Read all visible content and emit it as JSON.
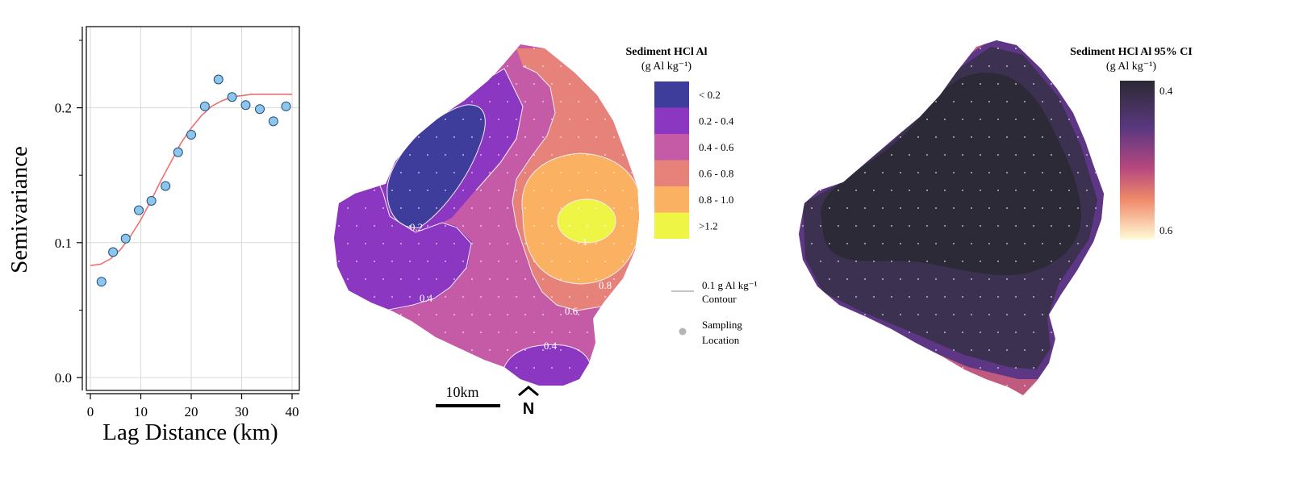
{
  "chart_data": [
    {
      "type": "scatter",
      "xlabel": "Lag Distance (km)",
      "ylabel": "Semivariance",
      "xlim": [
        0,
        40
      ],
      "ylim": [
        0.0,
        0.25
      ],
      "x_ticks": [
        "0",
        "10",
        "20",
        "30",
        "40"
      ],
      "y_ticks": [
        "0.0",
        "0.1",
        "0.2"
      ],
      "grid": true,
      "series": [
        {
          "name": "",
          "kind": "points",
          "x": [
            2.2,
            4.5,
            7.0,
            9.6,
            12.1,
            14.9,
            17.4,
            20.0,
            22.7,
            25.4,
            28.1,
            30.8,
            33.6,
            36.3,
            38.8
          ],
          "y": [
            0.071,
            0.093,
            0.103,
            0.124,
            0.131,
            0.142,
            0.167,
            0.18,
            0.201,
            0.221,
            0.208,
            0.202,
            0.199,
            0.19,
            0.201
          ]
        },
        {
          "name": "",
          "kind": "model-curve",
          "x": [
            0,
            2,
            4,
            6,
            8,
            10,
            12,
            14,
            16,
            18,
            20,
            22,
            24,
            26,
            28,
            30,
            32,
            34,
            36,
            38,
            40
          ],
          "y": [
            0.083,
            0.084,
            0.088,
            0.095,
            0.105,
            0.117,
            0.131,
            0.146,
            0.16,
            0.174,
            0.185,
            0.194,
            0.201,
            0.205,
            0.208,
            0.209,
            0.21,
            0.21,
            0.21,
            0.21,
            0.21
          ]
        }
      ],
      "colors": {
        "points": "#8ec5ec",
        "curve": "#f07070",
        "grid": "#d9d9d9"
      }
    },
    {
      "type": "heatmap",
      "title": "Sediment HCl Al",
      "units": "(g Al kg⁻¹)",
      "legend_placement": "right",
      "classes": [
        {
          "label": "< 0.2",
          "color": "#3f3d9c"
        },
        {
          "label": "0.2 - 0.4",
          "color": "#8c37c2"
        },
        {
          "label": "0.4 - 0.6",
          "color": "#c55aa6"
        },
        {
          "label": "0.6 - 0.8",
          "color": "#e6827a"
        },
        {
          "label": "0.8 - 1.0",
          "color": "#fbb162"
        },
        {
          "label": ">1.2",
          "color": "#eef545"
        }
      ],
      "contour_labels": [
        "0.2",
        "0.4",
        "1",
        "0.8",
        "0.6",
        "0.4"
      ],
      "extra_legend": {
        "contour_line": "0.1 g Al kg⁻¹",
        "contour_word": "Contour",
        "sampling_1": "Sampling",
        "sampling_2": "Location"
      },
      "scale_bar": "10km",
      "north_arrow": "N"
    },
    {
      "type": "heatmap",
      "title": "Sediment HCl Al 95% CI",
      "units": "(g Al kg⁻¹)",
      "legend_placement": "right",
      "colorbar_ticks": [
        "0.4",
        "0.6"
      ],
      "colors": {
        "dark": "#2c2a36",
        "mid": "#5a3784",
        "light": "#fffbd8"
      }
    }
  ]
}
